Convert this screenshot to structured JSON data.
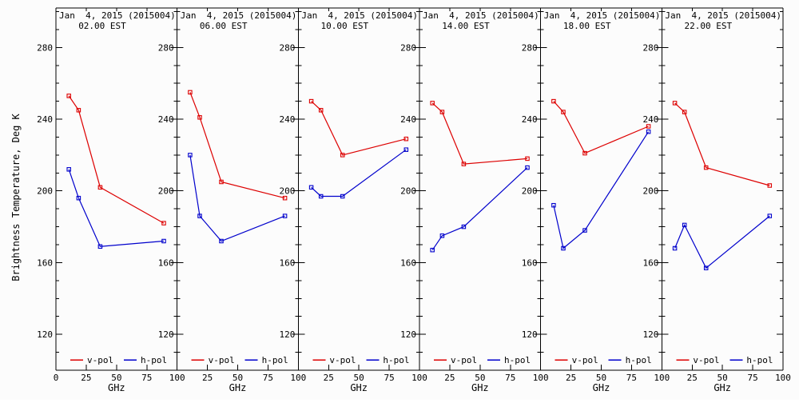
{
  "figure": {
    "background": "#fcfcfc",
    "frame_color": "#000000"
  },
  "chart_data": {
    "type": "line",
    "title": "Jan  4, 2015 (2015004)",
    "ylabel": "Brightness Temperature, Deg K",
    "xlabel": "GHz",
    "x": [
      10.7,
      18.7,
      36.5,
      89.0
    ],
    "xlim": [
      0,
      100
    ],
    "ylim": [
      100,
      302
    ],
    "xticks": [
      0,
      25,
      50,
      75,
      100
    ],
    "yticks": [
      120,
      160,
      200,
      240,
      280
    ],
    "y_minor_step": 10,
    "grid": false,
    "legend": {
      "position": "bottom-inside",
      "entries": [
        {
          "label": "v-pol",
          "color": "#dd0000"
        },
        {
          "label": "h-pol",
          "color": "#0000cc"
        }
      ]
    },
    "panels": [
      {
        "date": "Jan  4, 2015 (2015004)",
        "time": "02.00 EST",
        "series": [
          {
            "name": "v-pol",
            "color": "#dd0000",
            "values": [
              253,
              245,
              202,
              182
            ]
          },
          {
            "name": "h-pol",
            "color": "#0000cc",
            "values": [
              212,
              196,
              169,
              172
            ]
          }
        ]
      },
      {
        "date": "Jan  4, 2015 (2015004)",
        "time": "06.00 EST",
        "series": [
          {
            "name": "v-pol",
            "color": "#dd0000",
            "values": [
              255,
              241,
              205,
              196
            ]
          },
          {
            "name": "h-pol",
            "color": "#0000cc",
            "values": [
              220,
              186,
              172,
              186
            ]
          }
        ]
      },
      {
        "date": "Jan  4, 2015 (2015004)",
        "time": "10.00 EST",
        "series": [
          {
            "name": "v-pol",
            "color": "#dd0000",
            "values": [
              250,
              245,
              220,
              229
            ]
          },
          {
            "name": "h-pol",
            "color": "#0000cc",
            "values": [
              202,
              197,
              197,
              223
            ]
          }
        ]
      },
      {
        "date": "Jan  4, 2015 (2015004)",
        "time": "14.00 EST",
        "series": [
          {
            "name": "v-pol",
            "color": "#dd0000",
            "values": [
              249,
              244,
              215,
              218
            ]
          },
          {
            "name": "h-pol",
            "color": "#0000cc",
            "values": [
              167,
              175,
              180,
              213
            ]
          }
        ]
      },
      {
        "date": "Jan  4, 2015 (2015004)",
        "time": "18.00 EST",
        "series": [
          {
            "name": "v-pol",
            "color": "#dd0000",
            "values": [
              250,
              244,
              221,
              236
            ]
          },
          {
            "name": "h-pol",
            "color": "#0000cc",
            "values": [
              192,
              168,
              178,
              233
            ]
          }
        ]
      },
      {
        "date": "Jan  4, 2015 (2015004)",
        "time": "22.00 EST",
        "series": [
          {
            "name": "v-pol",
            "color": "#dd0000",
            "values": [
              249,
              244,
              213,
              203
            ]
          },
          {
            "name": "h-pol",
            "color": "#0000cc",
            "values": [
              168,
              181,
              157,
              186
            ]
          }
        ]
      }
    ]
  }
}
